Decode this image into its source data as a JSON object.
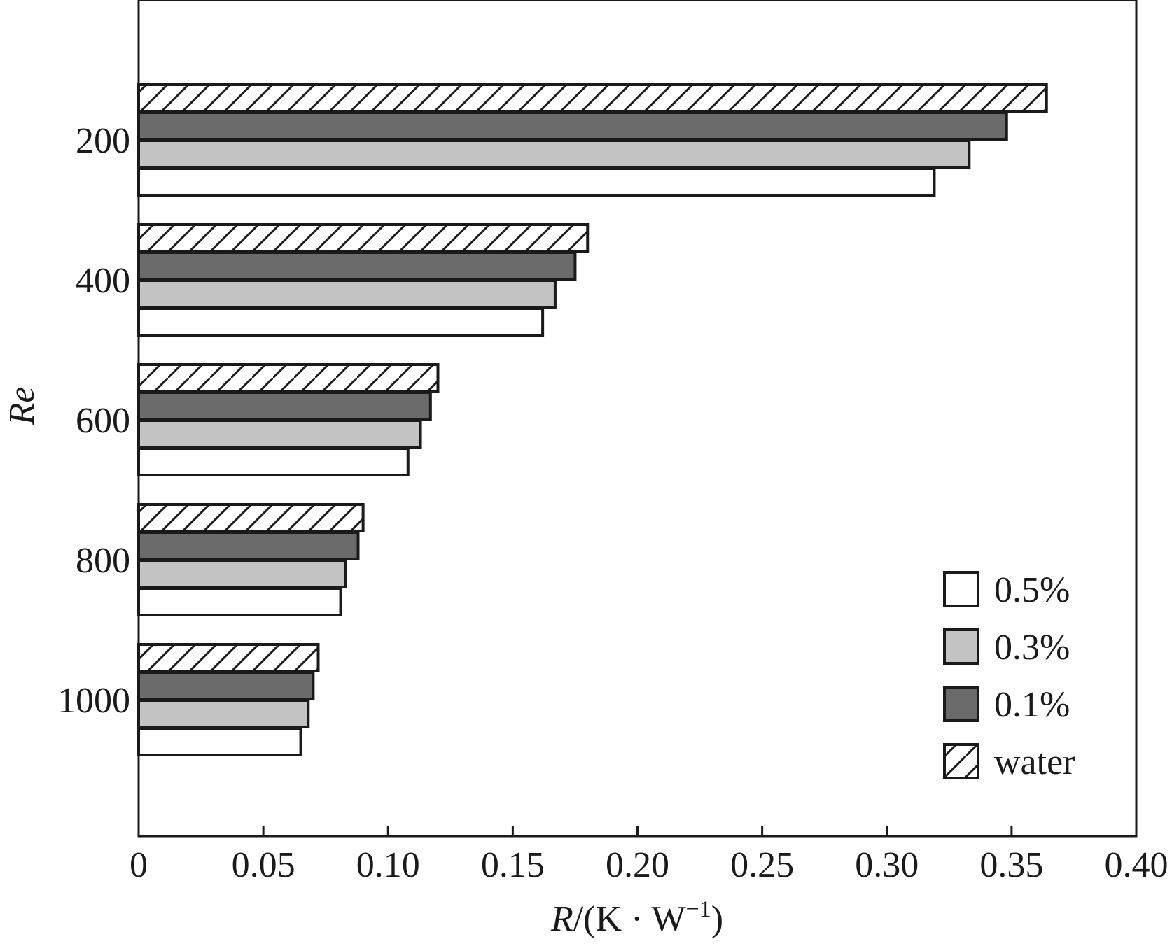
{
  "chart_data": {
    "type": "bar",
    "orientation": "horizontal",
    "categories": [
      "200",
      "400",
      "600",
      "800",
      "1000"
    ],
    "series": [
      {
        "name": "water",
        "values": [
          0.364,
          0.18,
          0.12,
          0.09,
          0.072
        ],
        "fill": "hatch"
      },
      {
        "name": "0.1%",
        "values": [
          0.348,
          0.175,
          0.117,
          0.088,
          0.07
        ],
        "fill": "#6b6b6b"
      },
      {
        "name": "0.3%",
        "values": [
          0.333,
          0.167,
          0.113,
          0.083,
          0.068
        ],
        "fill": "#c3c3c3"
      },
      {
        "name": "0.5%",
        "values": [
          0.319,
          0.162,
          0.108,
          0.081,
          0.065
        ],
        "fill": "#ffffff"
      }
    ],
    "legend_order": [
      "0.5%",
      "0.3%",
      "0.1%",
      "water"
    ],
    "xlim": [
      0,
      0.4
    ],
    "xticks": [
      "0",
      "0.05",
      "0.10",
      "0.15",
      "0.20",
      "0.25",
      "0.30",
      "0.35",
      "0.40"
    ],
    "ylabel": "Re",
    "xlabel": {
      "main": "R",
      "rest": "/(K · W",
      "sup": "−1",
      "end": ")"
    },
    "legend_position": "bottom-right",
    "grid": false,
    "colors": {
      "edge": "#1a1a1a",
      "dark": "#6b6b6b",
      "light": "#c3c3c3"
    }
  }
}
